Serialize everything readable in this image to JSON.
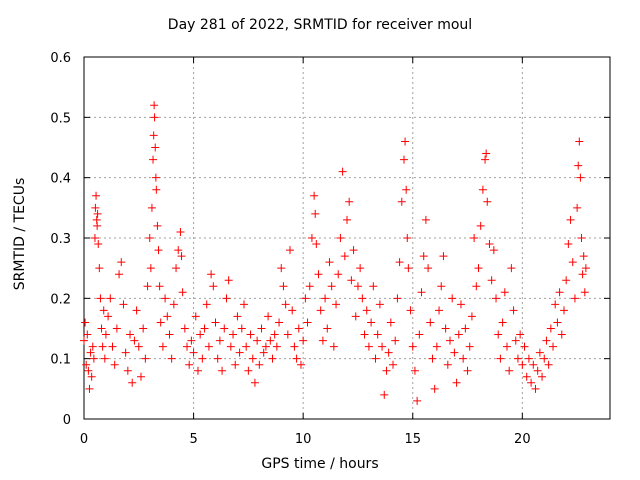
{
  "chart_data": {
    "type": "scatter",
    "title": "Day 281 of 2022, SRMTID for receiver moul",
    "xlabel": "GPS time / hours",
    "ylabel": "SRMTID / TECUs",
    "xlim": [
      0,
      24
    ],
    "ylim": [
      0,
      0.6
    ],
    "xticks": [
      "0",
      "5",
      "10",
      "15",
      "20"
    ],
    "yticks": [
      "0",
      "0.1",
      "0.2",
      "0.3",
      "0.4",
      "0.5",
      "0.6"
    ],
    "grid": true,
    "marker": "+",
    "color": "#ff0000",
    "series": [
      {
        "name": "SRMTID",
        "points": [
          [
            0.0,
            0.13
          ],
          [
            0.05,
            0.16
          ],
          [
            0.1,
            0.09
          ],
          [
            0.15,
            0.14
          ],
          [
            0.2,
            0.08
          ],
          [
            0.25,
            0.05
          ],
          [
            0.3,
            0.11
          ],
          [
            0.35,
            0.07
          ],
          [
            0.4,
            0.12
          ],
          [
            0.45,
            0.1
          ],
          [
            0.5,
            0.3
          ],
          [
            0.52,
            0.35
          ],
          [
            0.55,
            0.37
          ],
          [
            0.58,
            0.33
          ],
          [
            0.6,
            0.32
          ],
          [
            0.62,
            0.34
          ],
          [
            0.65,
            0.29
          ],
          [
            0.7,
            0.25
          ],
          [
            0.75,
            0.2
          ],
          [
            0.8,
            0.15
          ],
          [
            0.85,
            0.12
          ],
          [
            0.9,
            0.18
          ],
          [
            0.95,
            0.1
          ],
          [
            1.0,
            0.14
          ],
          [
            1.1,
            0.17
          ],
          [
            1.2,
            0.2
          ],
          [
            1.3,
            0.12
          ],
          [
            1.4,
            0.09
          ],
          [
            1.5,
            0.15
          ],
          [
            1.6,
            0.24
          ],
          [
            1.7,
            0.26
          ],
          [
            1.8,
            0.19
          ],
          [
            1.9,
            0.11
          ],
          [
            2.0,
            0.08
          ],
          [
            2.1,
            0.14
          ],
          [
            2.2,
            0.06
          ],
          [
            2.3,
            0.13
          ],
          [
            2.4,
            0.18
          ],
          [
            2.5,
            0.12
          ],
          [
            2.6,
            0.07
          ],
          [
            2.7,
            0.15
          ],
          [
            2.8,
            0.1
          ],
          [
            2.9,
            0.22
          ],
          [
            3.0,
            0.3
          ],
          [
            3.05,
            0.25
          ],
          [
            3.1,
            0.35
          ],
          [
            3.15,
            0.43
          ],
          [
            3.18,
            0.47
          ],
          [
            3.2,
            0.52
          ],
          [
            3.22,
            0.5
          ],
          [
            3.25,
            0.45
          ],
          [
            3.28,
            0.4
          ],
          [
            3.3,
            0.38
          ],
          [
            3.35,
            0.32
          ],
          [
            3.4,
            0.28
          ],
          [
            3.45,
            0.22
          ],
          [
            3.5,
            0.16
          ],
          [
            3.6,
            0.12
          ],
          [
            3.7,
            0.2
          ],
          [
            3.8,
            0.17
          ],
          [
            3.9,
            0.14
          ],
          [
            4.0,
            0.1
          ],
          [
            4.1,
            0.19
          ],
          [
            4.2,
            0.25
          ],
          [
            4.3,
            0.28
          ],
          [
            4.4,
            0.31
          ],
          [
            4.45,
            0.27
          ],
          [
            4.5,
            0.21
          ],
          [
            4.6,
            0.15
          ],
          [
            4.7,
            0.12
          ],
          [
            4.8,
            0.09
          ],
          [
            4.9,
            0.13
          ],
          [
            5.0,
            0.11
          ],
          [
            5.1,
            0.17
          ],
          [
            5.2,
            0.08
          ],
          [
            5.3,
            0.14
          ],
          [
            5.4,
            0.1
          ],
          [
            5.5,
            0.15
          ],
          [
            5.6,
            0.19
          ],
          [
            5.7,
            0.12
          ],
          [
            5.8,
            0.24
          ],
          [
            5.9,
            0.22
          ],
          [
            6.0,
            0.16
          ],
          [
            6.1,
            0.1
          ],
          [
            6.2,
            0.13
          ],
          [
            6.3,
            0.08
          ],
          [
            6.4,
            0.15
          ],
          [
            6.5,
            0.2
          ],
          [
            6.6,
            0.23
          ],
          [
            6.7,
            0.12
          ],
          [
            6.8,
            0.14
          ],
          [
            6.9,
            0.09
          ],
          [
            7.0,
            0.17
          ],
          [
            7.1,
            0.11
          ],
          [
            7.2,
            0.15
          ],
          [
            7.3,
            0.19
          ],
          [
            7.4,
            0.12
          ],
          [
            7.5,
            0.08
          ],
          [
            7.6,
            0.14
          ],
          [
            7.7,
            0.1
          ],
          [
            7.8,
            0.06
          ],
          [
            7.9,
            0.13
          ],
          [
            8.0,
            0.09
          ],
          [
            8.1,
            0.15
          ],
          [
            8.2,
            0.11
          ],
          [
            8.3,
            0.12
          ],
          [
            8.4,
            0.17
          ],
          [
            8.5,
            0.13
          ],
          [
            8.6,
            0.1
          ],
          [
            8.7,
            0.14
          ],
          [
            8.8,
            0.12
          ],
          [
            8.9,
            0.16
          ],
          [
            9.0,
            0.25
          ],
          [
            9.1,
            0.22
          ],
          [
            9.2,
            0.19
          ],
          [
            9.3,
            0.14
          ],
          [
            9.4,
            0.28
          ],
          [
            9.5,
            0.18
          ],
          [
            9.6,
            0.12
          ],
          [
            9.7,
            0.1
          ],
          [
            9.8,
            0.15
          ],
          [
            9.9,
            0.09
          ],
          [
            10.0,
            0.13
          ],
          [
            10.1,
            0.2
          ],
          [
            10.2,
            0.16
          ],
          [
            10.3,
            0.22
          ],
          [
            10.4,
            0.3
          ],
          [
            10.5,
            0.37
          ],
          [
            10.55,
            0.34
          ],
          [
            10.6,
            0.29
          ],
          [
            10.7,
            0.24
          ],
          [
            10.8,
            0.18
          ],
          [
            10.9,
            0.13
          ],
          [
            11.0,
            0.2
          ],
          [
            11.1,
            0.15
          ],
          [
            11.2,
            0.26
          ],
          [
            11.3,
            0.22
          ],
          [
            11.4,
            0.12
          ],
          [
            11.5,
            0.19
          ],
          [
            11.6,
            0.24
          ],
          [
            11.7,
            0.3
          ],
          [
            11.8,
            0.41
          ],
          [
            11.9,
            0.27
          ],
          [
            12.0,
            0.33
          ],
          [
            12.1,
            0.36
          ],
          [
            12.2,
            0.23
          ],
          [
            12.3,
            0.28
          ],
          [
            12.4,
            0.17
          ],
          [
            12.5,
            0.22
          ],
          [
            12.6,
            0.25
          ],
          [
            12.7,
            0.2
          ],
          [
            12.8,
            0.14
          ],
          [
            12.9,
            0.18
          ],
          [
            13.0,
            0.12
          ],
          [
            13.1,
            0.16
          ],
          [
            13.2,
            0.22
          ],
          [
            13.3,
            0.1
          ],
          [
            13.4,
            0.14
          ],
          [
            13.5,
            0.19
          ],
          [
            13.6,
            0.12
          ],
          [
            13.7,
            0.04
          ],
          [
            13.8,
            0.08
          ],
          [
            13.9,
            0.11
          ],
          [
            14.0,
            0.16
          ],
          [
            14.1,
            0.09
          ],
          [
            14.2,
            0.13
          ],
          [
            14.3,
            0.2
          ],
          [
            14.4,
            0.26
          ],
          [
            14.5,
            0.36
          ],
          [
            14.6,
            0.43
          ],
          [
            14.65,
            0.46
          ],
          [
            14.7,
            0.38
          ],
          [
            14.75,
            0.3
          ],
          [
            14.8,
            0.25
          ],
          [
            14.9,
            0.18
          ],
          [
            15.0,
            0.12
          ],
          [
            15.1,
            0.08
          ],
          [
            15.2,
            0.03
          ],
          [
            15.3,
            0.14
          ],
          [
            15.4,
            0.21
          ],
          [
            15.5,
            0.27
          ],
          [
            15.6,
            0.33
          ],
          [
            15.7,
            0.25
          ],
          [
            15.8,
            0.16
          ],
          [
            15.9,
            0.1
          ],
          [
            16.0,
            0.05
          ],
          [
            16.1,
            0.12
          ],
          [
            16.2,
            0.18
          ],
          [
            16.3,
            0.22
          ],
          [
            16.4,
            0.27
          ],
          [
            16.5,
            0.15
          ],
          [
            16.6,
            0.09
          ],
          [
            16.7,
            0.13
          ],
          [
            16.8,
            0.2
          ],
          [
            16.9,
            0.11
          ],
          [
            17.0,
            0.06
          ],
          [
            17.1,
            0.14
          ],
          [
            17.2,
            0.19
          ],
          [
            17.3,
            0.1
          ],
          [
            17.4,
            0.15
          ],
          [
            17.5,
            0.08
          ],
          [
            17.6,
            0.12
          ],
          [
            17.7,
            0.17
          ],
          [
            17.8,
            0.3
          ],
          [
            17.9,
            0.22
          ],
          [
            18.0,
            0.25
          ],
          [
            18.1,
            0.32
          ],
          [
            18.2,
            0.38
          ],
          [
            18.3,
            0.43
          ],
          [
            18.35,
            0.44
          ],
          [
            18.4,
            0.36
          ],
          [
            18.5,
            0.29
          ],
          [
            18.6,
            0.23
          ],
          [
            18.7,
            0.28
          ],
          [
            18.8,
            0.2
          ],
          [
            18.9,
            0.14
          ],
          [
            19.0,
            0.1
          ],
          [
            19.1,
            0.16
          ],
          [
            19.2,
            0.21
          ],
          [
            19.3,
            0.12
          ],
          [
            19.4,
            0.08
          ],
          [
            19.5,
            0.25
          ],
          [
            19.6,
            0.18
          ],
          [
            19.7,
            0.13
          ],
          [
            19.8,
            0.1
          ],
          [
            19.9,
            0.14
          ],
          [
            20.0,
            0.09
          ],
          [
            20.1,
            0.12
          ],
          [
            20.2,
            0.07
          ],
          [
            20.3,
            0.1
          ],
          [
            20.4,
            0.06
          ],
          [
            20.5,
            0.09
          ],
          [
            20.6,
            0.05
          ],
          [
            20.7,
            0.08
          ],
          [
            20.8,
            0.11
          ],
          [
            20.9,
            0.07
          ],
          [
            21.0,
            0.1
          ],
          [
            21.1,
            0.13
          ],
          [
            21.2,
            0.09
          ],
          [
            21.3,
            0.15
          ],
          [
            21.4,
            0.12
          ],
          [
            21.5,
            0.19
          ],
          [
            21.6,
            0.16
          ],
          [
            21.7,
            0.21
          ],
          [
            21.8,
            0.14
          ],
          [
            21.9,
            0.18
          ],
          [
            22.0,
            0.23
          ],
          [
            22.1,
            0.29
          ],
          [
            22.2,
            0.33
          ],
          [
            22.3,
            0.26
          ],
          [
            22.4,
            0.2
          ],
          [
            22.5,
            0.35
          ],
          [
            22.55,
            0.42
          ],
          [
            22.6,
            0.46
          ],
          [
            22.65,
            0.4
          ],
          [
            22.7,
            0.3
          ],
          [
            22.75,
            0.24
          ],
          [
            22.8,
            0.27
          ],
          [
            22.85,
            0.21
          ],
          [
            22.9,
            0.25
          ]
        ]
      }
    ]
  }
}
